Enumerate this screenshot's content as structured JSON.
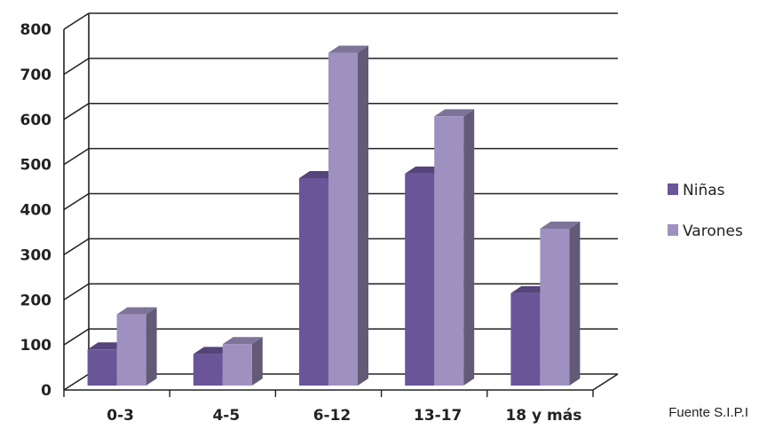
{
  "chart_data": {
    "type": "bar",
    "categories": [
      "0-3",
      "4-5",
      "6-12",
      "13-17",
      "18 y más"
    ],
    "series": [
      {
        "name": "Niñas",
        "values": [
          80,
          70,
          460,
          470,
          205
        ]
      },
      {
        "name": "Varones",
        "values": [
          158,
          92,
          738,
          597,
          348
        ]
      }
    ],
    "ylim": [
      0,
      800
    ],
    "yticks": [
      0,
      100,
      200,
      300,
      400,
      500,
      600,
      700,
      800
    ],
    "grid": true,
    "legend": "right",
    "style": "3d-clustered-column",
    "colors": {
      "Niñas": "#6a5599",
      "Varones": "#9e91c0"
    }
  },
  "footer": {
    "source": "Fuente S.I.P.I"
  }
}
